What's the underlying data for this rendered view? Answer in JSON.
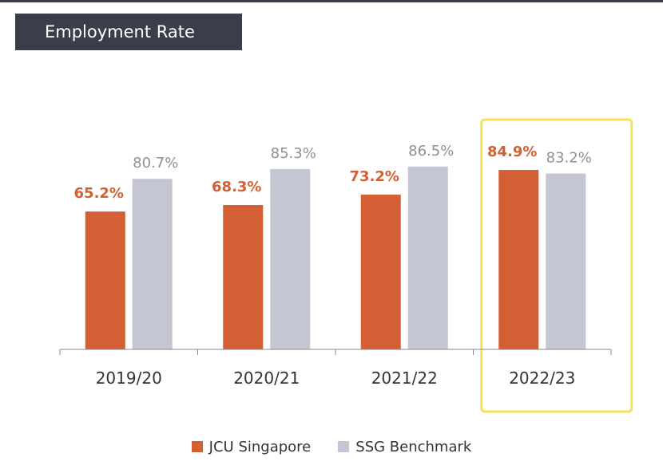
{
  "chart_data": {
    "type": "bar",
    "title": "Employment Rate",
    "categories": [
      "2019/20",
      "2020/21",
      "2021/22",
      "2022/23"
    ],
    "series": [
      {
        "name": "JCU Singapore",
        "values": [
          65.2,
          68.3,
          73.2,
          84.9
        ],
        "labels": [
          "65.2%",
          "68.3%",
          "73.2%",
          "84.9%"
        ],
        "color": "#d45f35"
      },
      {
        "name": "SSG Benchmark",
        "values": [
          80.7,
          85.3,
          86.5,
          83.2
        ],
        "labels": [
          "80.7%",
          "85.3%",
          "86.5%",
          "83.2%"
        ],
        "color": "#c5c6d3"
      }
    ],
    "ylim": [
      0,
      100
    ],
    "grid": false,
    "legend": "bottom-center",
    "highlight": {
      "category": "2022/23",
      "color": "#f3e35a"
    }
  },
  "colors": {
    "title_bg": "#3a3d4a",
    "title_text": "#ffffff",
    "axis": "#8a8a8a"
  }
}
